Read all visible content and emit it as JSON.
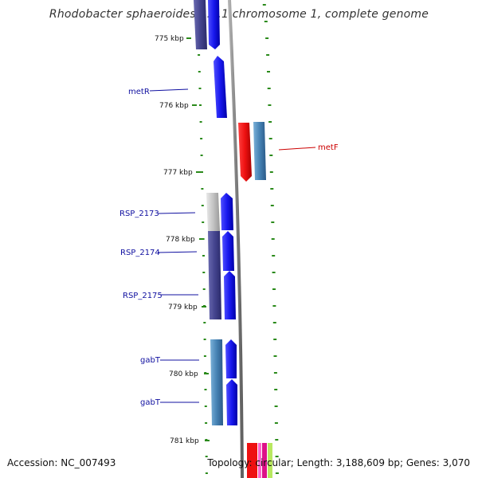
{
  "title": "Rhodobacter sphaeroides 2.4.1 chromosome 1, complete genome",
  "accession": "Accession: NC_007493",
  "topology": "Topology: circular; Length: 3,188,609 bp; Genes: 3,070",
  "tick_labels": [
    "775 kbp",
    "776 kbp",
    "777 kbp",
    "778 kbp",
    "779 kbp",
    "780 kbp",
    "781 kbp"
  ],
  "gene_labels": [
    {
      "name": "metR",
      "color": "#1010a0"
    },
    {
      "name": "metF",
      "color": "#cc0000"
    },
    {
      "name": "RSP_2173",
      "color": "#1010a0"
    },
    {
      "name": "RSP_2174",
      "color": "#1010a0"
    },
    {
      "name": "RSP_2175",
      "color": "#1010a0"
    },
    {
      "name": "gabT",
      "color": "#1010a0"
    },
    {
      "name": "gabT",
      "color": "#1010a0"
    }
  ],
  "colors": {
    "backbone": "#888888",
    "tick": "#2a8a1a",
    "forward_gene": "#1a1aee",
    "reverse_gene": "#cc1111",
    "cog_dark": "#4a4a9a",
    "cog_steel": "#4a86b8",
    "cog_grey": "#c8c8c8"
  }
}
